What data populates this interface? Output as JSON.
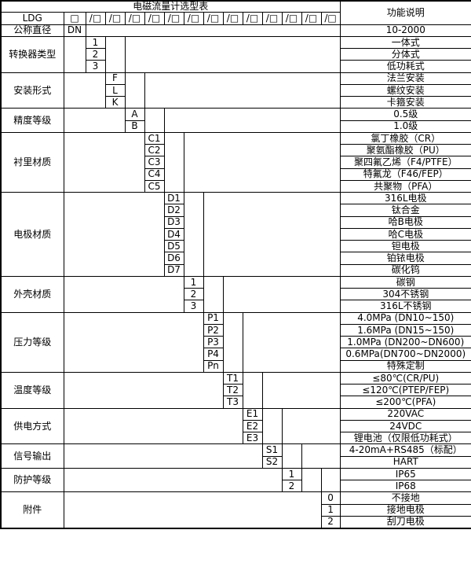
{
  "title": "电磁流量计选型表",
  "function_header": "功能说明",
  "model": {
    "prefix": "LDG",
    "dn_box": "□",
    "slots": [
      "/□",
      "/□",
      "/□",
      "/□",
      "/□",
      "/□",
      "/□",
      "/□",
      "/□",
      "/□",
      "/□",
      "/□",
      "/□"
    ]
  },
  "categories": [
    {
      "label": "公称直径",
      "code_col": 0,
      "options": [
        {
          "code": "DN",
          "desc": "10-2000"
        }
      ]
    },
    {
      "label": "转换器类型",
      "code_col": 1,
      "options": [
        {
          "code": "1",
          "desc": "一体式"
        },
        {
          "code": "2",
          "desc": "分体式"
        },
        {
          "code": "3",
          "desc": "低功耗式"
        }
      ]
    },
    {
      "label": "安装形式",
      "code_col": 2,
      "options": [
        {
          "code": "F",
          "desc": "法兰安装"
        },
        {
          "code": "L",
          "desc": "螺纹安装"
        },
        {
          "code": "K",
          "desc": "卡箍安装"
        }
      ]
    },
    {
      "label": "精度等级",
      "code_col": 3,
      "options": [
        {
          "code": "A",
          "desc": "0.5级"
        },
        {
          "code": "B",
          "desc": "1.0级"
        }
      ]
    },
    {
      "label": "衬里材质",
      "code_col": 4,
      "options": [
        {
          "code": "C1",
          "desc": "氯丁橡胶（CR）"
        },
        {
          "code": "C2",
          "desc": "聚氨酯橡胶（PU）"
        },
        {
          "code": "C3",
          "desc": "聚四氟乙烯（F4/PTFE）"
        },
        {
          "code": "C4",
          "desc": "特氟龙（F46/FEP）"
        },
        {
          "code": "C5",
          "desc": "共聚物（PFA）"
        }
      ]
    },
    {
      "label": "电极材质",
      "code_col": 5,
      "options": [
        {
          "code": "D1",
          "desc": "316L电极"
        },
        {
          "code": "D2",
          "desc": "钛合金"
        },
        {
          "code": "D3",
          "desc": "哈B电极"
        },
        {
          "code": "D4",
          "desc": "哈C电极"
        },
        {
          "code": "D5",
          "desc": "钽电极"
        },
        {
          "code": "D6",
          "desc": "铂铱电极"
        },
        {
          "code": "D7",
          "desc": "碳化钨"
        }
      ]
    },
    {
      "label": "外壳材质",
      "code_col": 6,
      "options": [
        {
          "code": "1",
          "desc": "碳钢"
        },
        {
          "code": "2",
          "desc": "304不锈钢"
        },
        {
          "code": "3",
          "desc": "316L不锈钢"
        }
      ]
    },
    {
      "label": "压力等级",
      "code_col": 7,
      "options": [
        {
          "code": "P1",
          "desc": "4.0MPa (DN10~150)",
          "align": "left"
        },
        {
          "code": "P2",
          "desc": "1.6MPa (DN15~150)",
          "align": "left"
        },
        {
          "code": "P3",
          "desc": "1.0MPa (DN200~DN600)",
          "align": "left"
        },
        {
          "code": "P4",
          "desc": "0.6MPa(DN700~DN2000)",
          "align": "left"
        },
        {
          "code": "Pn",
          "desc": "特殊定制"
        }
      ]
    },
    {
      "label": "温度等级",
      "code_col": 8,
      "options": [
        {
          "code": "T1",
          "desc": "≤80℃(CR/PU)"
        },
        {
          "code": "T2",
          "desc": "≤120℃(PTEP/FEP)"
        },
        {
          "code": "T3",
          "desc": "≤200℃(PFA)"
        }
      ]
    },
    {
      "label": "供电方式",
      "code_col": 9,
      "options": [
        {
          "code": "E1",
          "desc": "220VAC"
        },
        {
          "code": "E2",
          "desc": "24VDC"
        },
        {
          "code": "E3",
          "desc": "锂电池（仅限低功耗式）"
        }
      ]
    },
    {
      "label": "信号输出",
      "code_col": 10,
      "options": [
        {
          "code": "S1",
          "desc": "4-20mA+RS485（标配）"
        },
        {
          "code": "S2",
          "desc": "HART"
        }
      ]
    },
    {
      "label": "防护等级",
      "code_col": 11,
      "options": [
        {
          "code": "1",
          "desc": "IP65"
        },
        {
          "code": "2",
          "desc": "IP68"
        }
      ]
    },
    {
      "label": "附件",
      "code_col": 13,
      "options": [
        {
          "code": "0",
          "desc": "不接地"
        },
        {
          "code": "1",
          "desc": "接地电极"
        },
        {
          "code": "2",
          "desc": "刮刀电极"
        }
      ]
    }
  ]
}
